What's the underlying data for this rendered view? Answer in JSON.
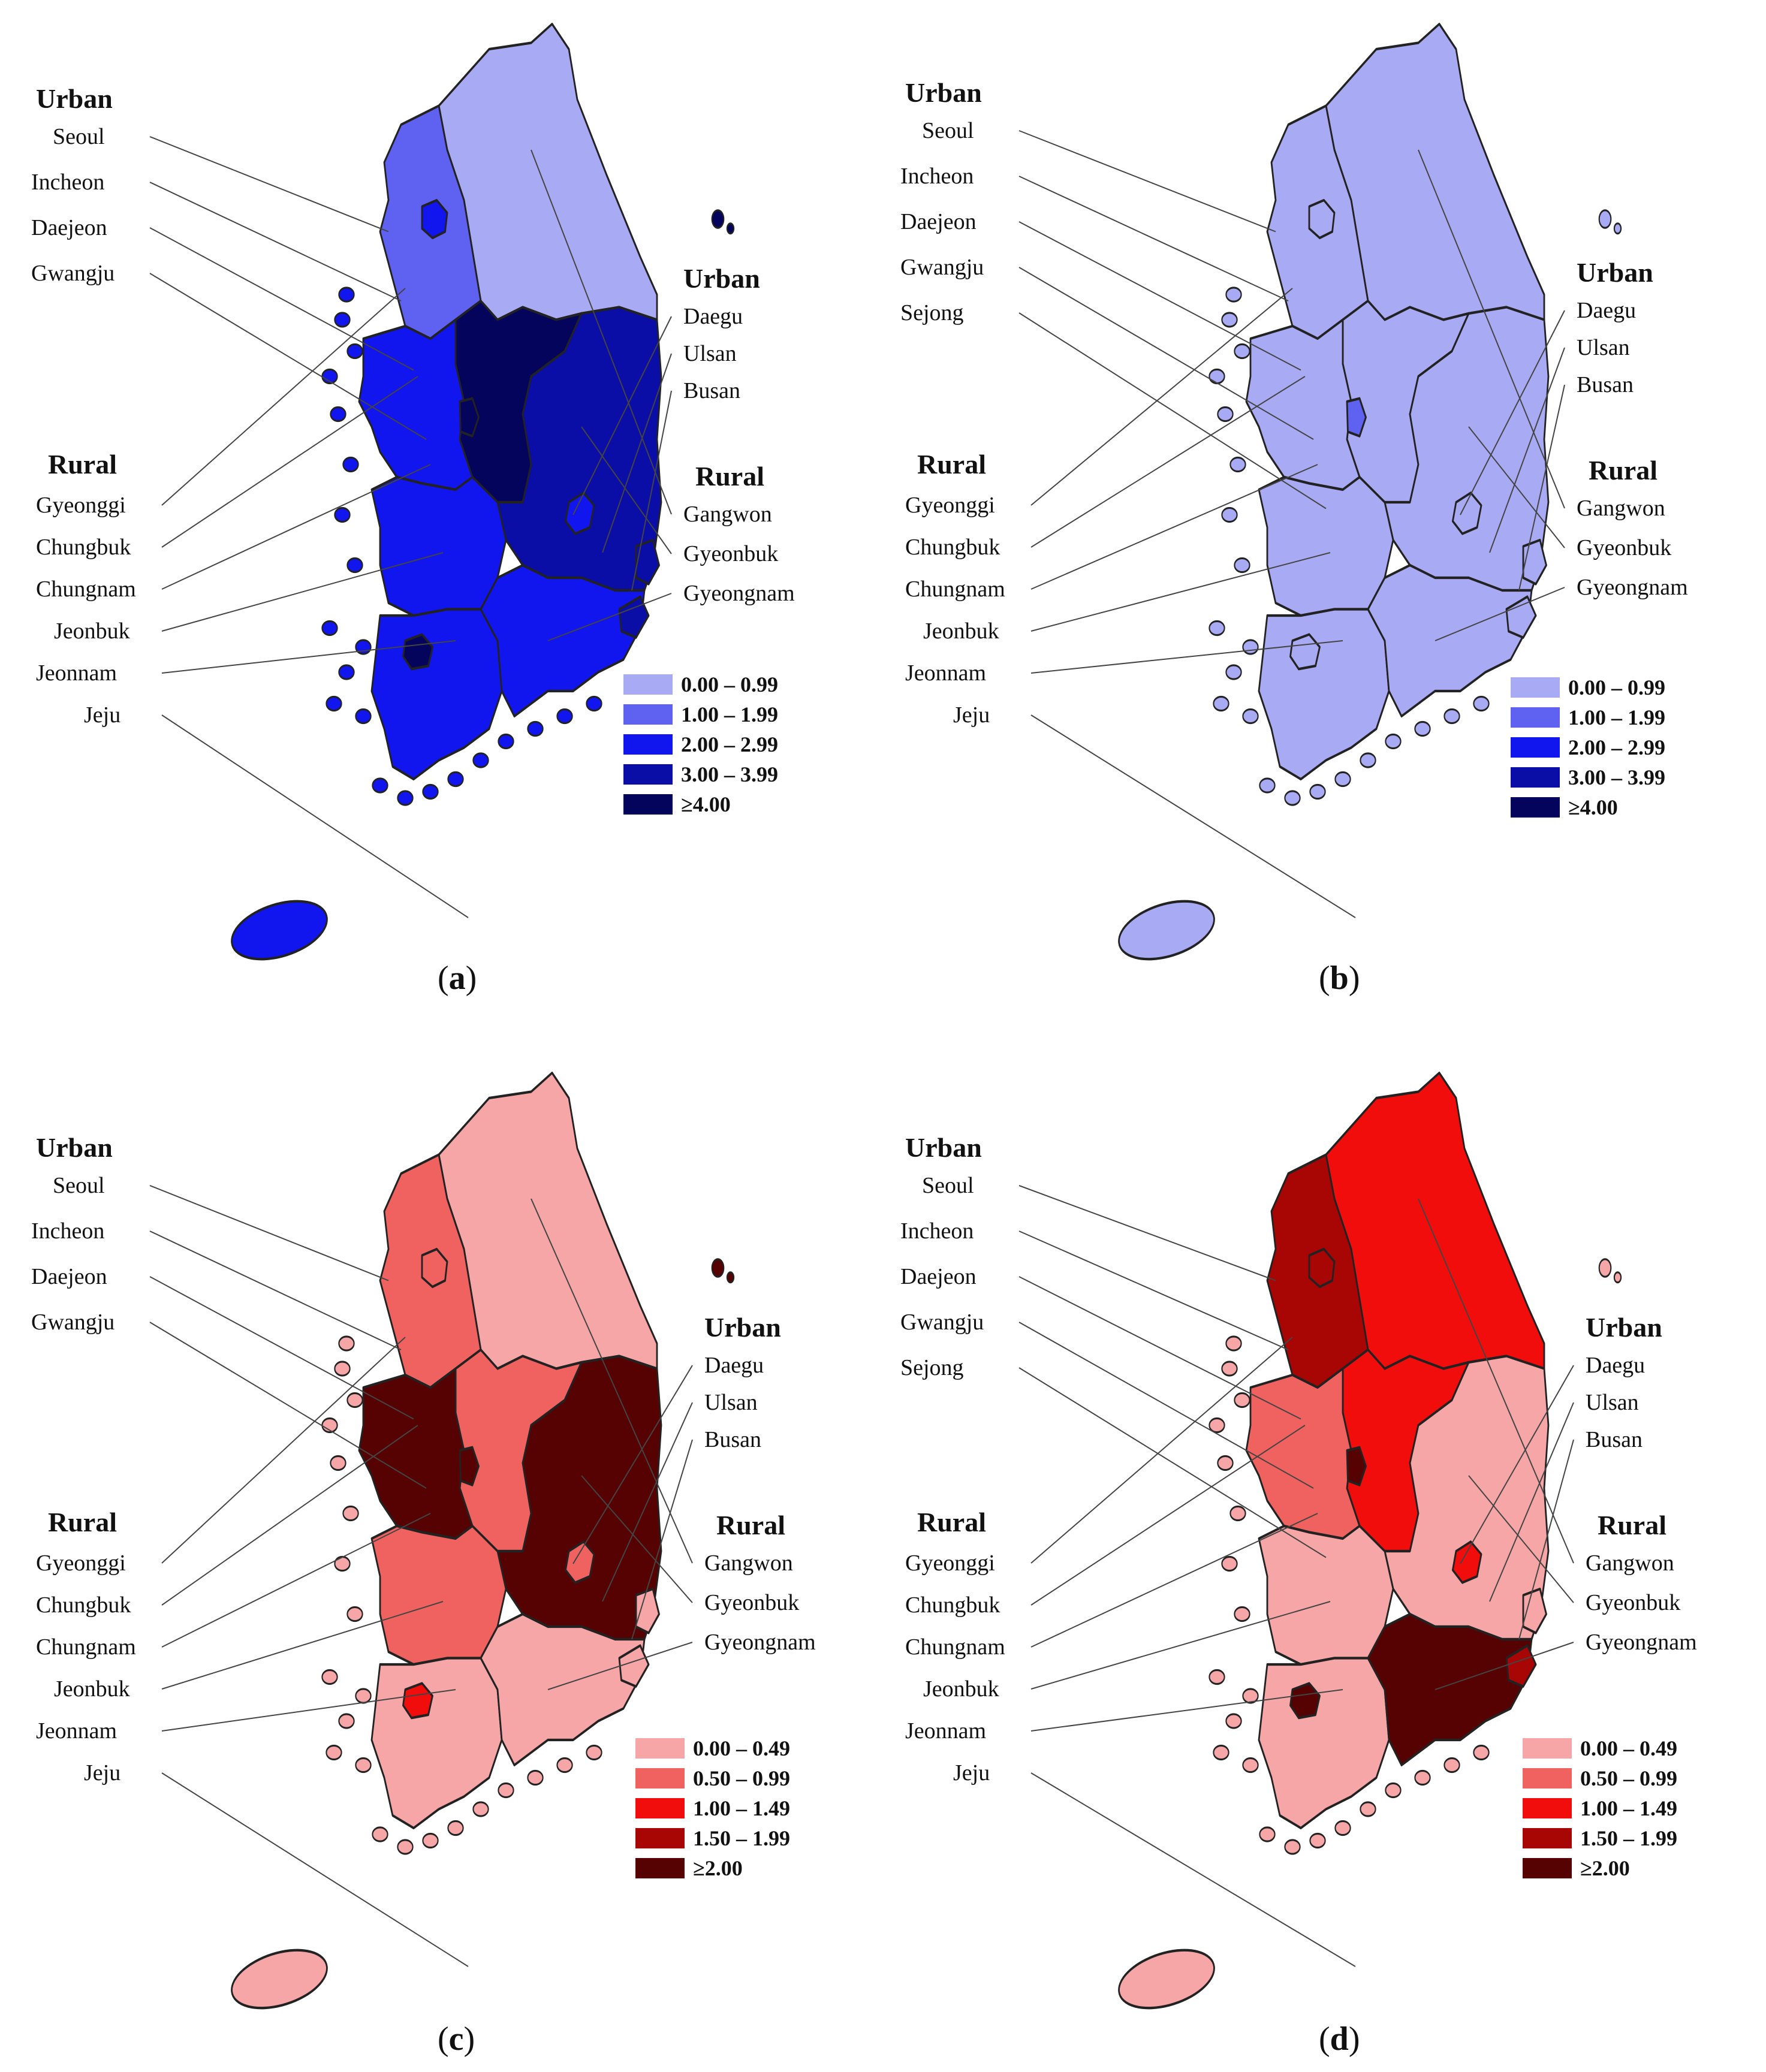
{
  "panels": [
    {
      "caption": "a",
      "urban_header_left": "Urban",
      "urban_header_right": "Urban",
      "rural_header_left": "Rural",
      "rural_header_right": "Rural",
      "left_urban_labels": [
        "Seoul",
        "Incheon",
        "Daejeon",
        "Gwangju"
      ],
      "left_rural_labels": [
        "Gyeonggi",
        "Chungbuk",
        "Chungnam",
        "Jeonbuk",
        "Jeonnam",
        "Jeju"
      ],
      "right_urban_labels": [
        "Daegu",
        "Ulsan",
        "Busan"
      ],
      "right_rural_labels": [
        "Gangwon",
        "Gyeonbuk",
        "Gyeongnam"
      ],
      "legend": [
        "0.00 – 0.99",
        "1.00 – 1.99",
        "2.00 – 2.99",
        "3.00 – 3.99",
        "≥4.00"
      ],
      "legend_colors": [
        "#a9aaf4",
        "#5f62f0",
        "#1216ee",
        "#0b0ea6",
        "#04045c"
      ],
      "fills": {
        "gangwon": "#a9aaf4",
        "gyeonggi": "#5f62f0",
        "chungnam": "#1216ee",
        "chungbuk": "#04045c",
        "gyeonbuk": "#0b0ea6",
        "jeonbuk": "#1216ee",
        "jeonnam": "#1216ee",
        "gyeongnam": "#1216ee",
        "seoul": "#1216ee",
        "daejeon": "#04045c",
        "gwangju": "#04045c",
        "daegu": "#1216ee",
        "busan": "#0b0ea6",
        "ulsan": "#0b0ea6",
        "jeju": "#1216ee",
        "islands": "#1216ee",
        "ulleung": "#04045c"
      }
    },
    {
      "caption": "b",
      "urban_header_left": "Urban",
      "urban_header_right": "Urban",
      "rural_header_left": "Rural",
      "rural_header_right": "Rural",
      "left_urban_labels": [
        "Seoul",
        "Incheon",
        "Daejeon",
        "Gwangju",
        "Sejong"
      ],
      "left_rural_labels": [
        "Gyeonggi",
        "Chungbuk",
        "Chungnam",
        "Jeonbuk",
        "Jeonnam",
        "Jeju"
      ],
      "right_urban_labels": [
        "Daegu",
        "Ulsan",
        "Busan"
      ],
      "right_rural_labels": [
        "Gangwon",
        "Gyeonbuk",
        "Gyeongnam"
      ],
      "legend": [
        "0.00 – 0.99",
        "1.00 – 1.99",
        "2.00 – 2.99",
        "3.00 – 3.99",
        "≥4.00"
      ],
      "legend_colors": [
        "#a9aaf4",
        "#5f62f0",
        "#1216ee",
        "#0b0ea6",
        "#04045c"
      ],
      "fills": {
        "gangwon": "#a9aaf4",
        "gyeonggi": "#a9aaf4",
        "chungnam": "#a9aaf4",
        "chungbuk": "#a9aaf4",
        "gyeonbuk": "#a9aaf4",
        "jeonbuk": "#a9aaf4",
        "jeonnam": "#a9aaf4",
        "gyeongnam": "#a9aaf4",
        "seoul": "#a9aaf4",
        "daejeon": "#5f62f0",
        "gwangju": "#a9aaf4",
        "daegu": "#a9aaf4",
        "busan": "#a9aaf4",
        "ulsan": "#a9aaf4",
        "jeju": "#a9aaf4",
        "islands": "#a9aaf4",
        "ulleung": "#a9aaf4"
      }
    },
    {
      "caption": "c",
      "urban_header_left": "Urban",
      "urban_header_right": "Urban",
      "rural_header_left": "Rural",
      "rural_header_right": "Rural",
      "left_urban_labels": [
        "Seoul",
        "Incheon",
        "Daejeon",
        "Gwangju"
      ],
      "left_rural_labels": [
        "Gyeonggi",
        "Chungbuk",
        "Chungnam",
        "Jeonbuk",
        "Jeonnam",
        "Jeju"
      ],
      "right_urban_labels": [
        "Daegu",
        "Ulsan",
        "Busan"
      ],
      "right_rural_labels": [
        "Gangwon",
        "Gyeonbuk",
        "Gyeongnam"
      ],
      "legend": [
        "0.00 – 0.49",
        "0.50 – 0.99",
        "1.00 – 1.49",
        "1.50 – 1.99",
        "≥2.00"
      ],
      "legend_colors": [
        "#f6a6a6",
        "#f0625f",
        "#f20d0d",
        "#a80505",
        "#570202"
      ],
      "fills": {
        "gangwon": "#f6a6a6",
        "gyeonggi": "#f0625f",
        "chungnam": "#570202",
        "chungbuk": "#f0625f",
        "gyeonbuk": "#570202",
        "jeonbuk": "#f0625f",
        "jeonnam": "#f6a6a6",
        "gyeongnam": "#f6a6a6",
        "seoul": "#f0625f",
        "daejeon": "#570202",
        "gwangju": "#f20d0d",
        "daegu": "#f0625f",
        "busan": "#f6a6a6",
        "ulsan": "#f6a6a6",
        "jeju": "#f6a6a6",
        "islands": "#f6a6a6",
        "ulleung": "#570202"
      }
    },
    {
      "caption": "d",
      "urban_header_left": "Urban",
      "urban_header_right": "Urban",
      "rural_header_left": "Rural",
      "rural_header_right": "Rural",
      "left_urban_labels": [
        "Seoul",
        "Incheon",
        "Daejeon",
        "Gwangju",
        "Sejong"
      ],
      "left_rural_labels": [
        "Gyeonggi",
        "Chungbuk",
        "Chungnam",
        "Jeonbuk",
        "Jeonnam",
        "Jeju"
      ],
      "right_urban_labels": [
        "Daegu",
        "Ulsan",
        "Busan"
      ],
      "right_rural_labels": [
        "Gangwon",
        "Gyeonbuk",
        "Gyeongnam"
      ],
      "legend": [
        "0.00 – 0.49",
        "0.50 – 0.99",
        "1.00 – 1.49",
        "1.50 – 1.99",
        "≥2.00"
      ],
      "legend_colors": [
        "#f6a6a6",
        "#f0625f",
        "#f20d0d",
        "#a80505",
        "#570202"
      ],
      "fills": {
        "gangwon": "#f20d0d",
        "gyeonggi": "#a80505",
        "chungnam": "#f0625f",
        "chungbuk": "#f20d0d",
        "gyeonbuk": "#f6a6a6",
        "jeonbuk": "#f6a6a6",
        "jeonnam": "#f6a6a6",
        "gyeongnam": "#570202",
        "seoul": "#a80505",
        "daejeon": "#570202",
        "gwangju": "#570202",
        "daegu": "#f20d0d",
        "busan": "#a80505",
        "ulsan": "#f6a6a6",
        "jeju": "#f6a6a6",
        "islands": "#f6a6a6",
        "ulleung": "#f6a6a6"
      }
    }
  ]
}
